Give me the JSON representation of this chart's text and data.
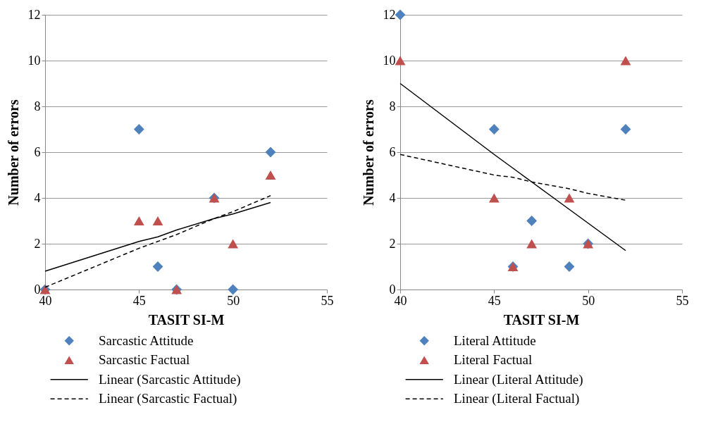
{
  "chart_data": [
    {
      "type": "scatter",
      "xlabel": "TASIT SI-M",
      "ylabel": "Number of errors",
      "x": [
        40,
        45,
        46,
        47,
        49,
        50,
        52
      ],
      "xlim": [
        40,
        55
      ],
      "xticks": [
        40,
        45,
        50,
        55
      ],
      "ylim": [
        0,
        12
      ],
      "yticks": [
        0,
        2,
        4,
        6,
        8,
        10,
        12
      ],
      "grid": "y",
      "legend": "bottom",
      "series": [
        {
          "name": "Sarcastic Attitude",
          "color": "#4f81bd",
          "marker": "diamond",
          "values": [
            0,
            7,
            1,
            0,
            4,
            0,
            6
          ]
        },
        {
          "name": "Sarcastic Factual",
          "color": "#c0504d",
          "marker": "triangle",
          "values": [
            0,
            3,
            3,
            0,
            4,
            2,
            5
          ]
        },
        {
          "name": "Linear (Sarcastic Attitude)",
          "type": "line",
          "color": "#000000",
          "line_style": "solid",
          "values": [
            0.8,
            2.1,
            2.3,
            2.6,
            3.1,
            3.3,
            3.8
          ]
        },
        {
          "name": "Linear (Sarcastic Factual)",
          "type": "line",
          "color": "#000000",
          "line_style": "dashed",
          "values": [
            0.1,
            1.8,
            2.1,
            2.4,
            3.1,
            3.4,
            4.1
          ]
        }
      ]
    },
    {
      "type": "scatter",
      "xlabel": "TASIT SI-M",
      "ylabel": "Number of errors",
      "x": [
        40,
        45,
        46,
        47,
        49,
        50,
        52
      ],
      "xlim": [
        40,
        55
      ],
      "xticks": [
        40,
        45,
        50,
        55
      ],
      "ylim": [
        0,
        12
      ],
      "yticks": [
        0,
        2,
        4,
        6,
        8,
        10,
        12
      ],
      "grid": "y",
      "legend": "bottom",
      "series": [
        {
          "name": "Literal Attitude",
          "color": "#4f81bd",
          "marker": "diamond",
          "values": [
            12,
            7,
            1,
            3,
            1,
            2,
            7
          ]
        },
        {
          "name": "Literal Factual",
          "color": "#c0504d",
          "marker": "triangle",
          "values": [
            10,
            4,
            1,
            2,
            4,
            2,
            10
          ]
        },
        {
          "name": "Linear (Literal Attitude)",
          "type": "line",
          "color": "#000000",
          "line_style": "solid",
          "values": [
            9.0,
            5.9,
            5.3,
            4.7,
            3.5,
            2.9,
            1.7
          ]
        },
        {
          "name": "Linear (Literal Factual)",
          "type": "line",
          "color": "#000000",
          "line_style": "dashed",
          "values": [
            5.9,
            5.0,
            4.9,
            4.7,
            4.4,
            4.2,
            3.9
          ]
        }
      ]
    }
  ]
}
